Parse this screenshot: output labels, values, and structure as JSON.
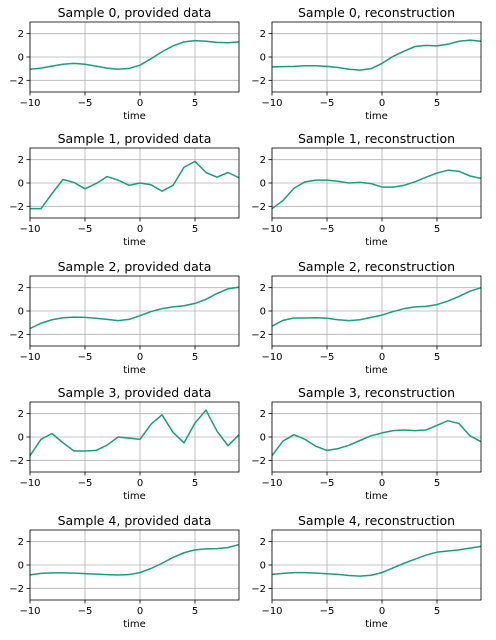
{
  "series_color": "#1b9e77",
  "chart_data": [
    {
      "type": "line",
      "title": "Sample 0, provided data",
      "xlabel": "time",
      "ylabel": "",
      "xlim": [
        -10,
        9
      ],
      "ylim": [
        -3,
        3
      ],
      "xticks": [
        -10,
        -5,
        0,
        5
      ],
      "yticks": [
        -2,
        0,
        2
      ],
      "grid": true,
      "x": [
        -10,
        -9,
        -8,
        -7,
        -6,
        -5,
        -4,
        -3,
        -2,
        -1,
        0,
        1,
        2,
        3,
        4,
        5,
        6,
        7,
        8,
        9
      ],
      "series": [
        {
          "values": [
            -1.05,
            -0.95,
            -0.78,
            -0.62,
            -0.55,
            -0.62,
            -0.78,
            -0.95,
            -1.05,
            -0.98,
            -0.7,
            -0.15,
            0.45,
            0.95,
            1.3,
            1.4,
            1.35,
            1.25,
            1.22,
            1.3
          ]
        }
      ]
    },
    {
      "type": "line",
      "title": "Sample 0, reconstruction",
      "xlabel": "time",
      "ylabel": "",
      "xlim": [
        -10,
        9
      ],
      "ylim": [
        -3,
        3
      ],
      "xticks": [
        -10,
        -5,
        0,
        5
      ],
      "yticks": [
        -2,
        0,
        2
      ],
      "grid": true,
      "x": [
        -10,
        -9,
        -8,
        -7,
        -6,
        -5,
        -4,
        -3,
        -2,
        -1,
        0,
        1,
        2,
        3,
        4,
        5,
        6,
        7,
        8,
        9
      ],
      "series": [
        {
          "values": [
            -0.85,
            -0.82,
            -0.8,
            -0.75,
            -0.75,
            -0.8,
            -0.9,
            -1.05,
            -1.12,
            -1.0,
            -0.55,
            0.05,
            0.5,
            0.9,
            1.0,
            0.95,
            1.1,
            1.35,
            1.45,
            1.35
          ]
        }
      ]
    },
    {
      "type": "line",
      "title": "Sample 1, provided data",
      "xlabel": "time",
      "ylabel": "",
      "xlim": [
        -10,
        9
      ],
      "ylim": [
        -3,
        3
      ],
      "xticks": [
        -10,
        -5,
        0,
        5
      ],
      "yticks": [
        -2,
        0,
        2
      ],
      "grid": true,
      "x": [
        -10,
        -9,
        -8,
        -7,
        -6,
        -5,
        -4,
        -3,
        -2,
        -1,
        0,
        1,
        2,
        3,
        4,
        5,
        6,
        7,
        8,
        9
      ],
      "series": [
        {
          "values": [
            -2.2,
            -2.2,
            -0.9,
            0.3,
            0.05,
            -0.5,
            -0.05,
            0.55,
            0.25,
            -0.2,
            0.0,
            -0.15,
            -0.7,
            -0.2,
            1.35,
            1.85,
            0.9,
            0.5,
            0.9,
            0.45
          ]
        }
      ]
    },
    {
      "type": "line",
      "title": "Sample 1, reconstruction",
      "xlabel": "time",
      "ylabel": "",
      "xlim": [
        -10,
        9
      ],
      "ylim": [
        -3,
        3
      ],
      "xticks": [
        -10,
        -5,
        0,
        5
      ],
      "yticks": [
        -2,
        0,
        2
      ],
      "grid": true,
      "x": [
        -10,
        -9,
        -8,
        -7,
        -6,
        -5,
        -4,
        -3,
        -2,
        -1,
        0,
        1,
        2,
        3,
        4,
        5,
        6,
        7,
        8,
        9
      ],
      "series": [
        {
          "values": [
            -2.2,
            -1.5,
            -0.45,
            0.1,
            0.25,
            0.25,
            0.15,
            0.0,
            0.05,
            -0.05,
            -0.35,
            -0.35,
            -0.2,
            0.1,
            0.5,
            0.85,
            1.1,
            1.0,
            0.6,
            0.4
          ]
        }
      ]
    },
    {
      "type": "line",
      "title": "Sample 2, provided data",
      "xlabel": "time",
      "ylabel": "",
      "xlim": [
        -10,
        9
      ],
      "ylim": [
        -3,
        3
      ],
      "xticks": [
        -10,
        -5,
        0,
        5
      ],
      "yticks": [
        -2,
        0,
        2
      ],
      "grid": true,
      "x": [
        -10,
        -9,
        -8,
        -7,
        -6,
        -5,
        -4,
        -3,
        -2,
        -1,
        0,
        1,
        2,
        3,
        4,
        5,
        6,
        7,
        8,
        9
      ],
      "series": [
        {
          "values": [
            -1.5,
            -1.05,
            -0.75,
            -0.58,
            -0.52,
            -0.55,
            -0.62,
            -0.72,
            -0.82,
            -0.72,
            -0.4,
            -0.05,
            0.2,
            0.35,
            0.45,
            0.65,
            1.0,
            1.5,
            1.9,
            2.05
          ]
        }
      ]
    },
    {
      "type": "line",
      "title": "Sample 2, reconstruction",
      "xlabel": "time",
      "ylabel": "",
      "xlim": [
        -10,
        9
      ],
      "ylim": [
        -3,
        3
      ],
      "xticks": [
        -10,
        -5,
        0,
        5
      ],
      "yticks": [
        -2,
        0,
        2
      ],
      "grid": true,
      "x": [
        -10,
        -9,
        -8,
        -7,
        -6,
        -5,
        -4,
        -3,
        -2,
        -1,
        0,
        1,
        2,
        3,
        4,
        5,
        6,
        7,
        8,
        9
      ],
      "series": [
        {
          "values": [
            -1.3,
            -0.8,
            -0.6,
            -0.6,
            -0.58,
            -0.62,
            -0.75,
            -0.82,
            -0.75,
            -0.55,
            -0.35,
            -0.05,
            0.2,
            0.35,
            0.4,
            0.55,
            0.85,
            1.25,
            1.7,
            2.0
          ]
        }
      ]
    },
    {
      "type": "line",
      "title": "Sample 3, provided data",
      "xlabel": "time",
      "ylabel": "",
      "xlim": [
        -10,
        9
      ],
      "ylim": [
        -3,
        3
      ],
      "xticks": [
        -10,
        -5,
        0,
        5
      ],
      "yticks": [
        -2,
        0,
        2
      ],
      "grid": true,
      "x": [
        -10,
        -9,
        -8,
        -7,
        -6,
        -5,
        -4,
        -3,
        -2,
        -1,
        0,
        1,
        2,
        3,
        4,
        5,
        6,
        7,
        8,
        9
      ],
      "series": [
        {
          "values": [
            -1.6,
            -0.2,
            0.3,
            -0.5,
            -1.2,
            -1.2,
            -1.15,
            -0.7,
            0.0,
            -0.1,
            -0.2,
            1.1,
            1.9,
            0.4,
            -0.5,
            1.2,
            2.3,
            0.5,
            -0.75,
            0.2
          ]
        }
      ]
    },
    {
      "type": "line",
      "title": "Sample 3, reconstruction",
      "xlabel": "time",
      "ylabel": "",
      "xlim": [
        -10,
        9
      ],
      "ylim": [
        -3,
        3
      ],
      "xticks": [
        -10,
        -5,
        0,
        5
      ],
      "yticks": [
        -2,
        0,
        2
      ],
      "grid": true,
      "x": [
        -10,
        -9,
        -8,
        -7,
        -6,
        -5,
        -4,
        -3,
        -2,
        -1,
        0,
        1,
        2,
        3,
        4,
        5,
        6,
        7,
        8,
        9
      ],
      "series": [
        {
          "values": [
            -1.6,
            -0.35,
            0.2,
            -0.2,
            -0.8,
            -1.15,
            -1.0,
            -0.7,
            -0.3,
            0.1,
            0.35,
            0.55,
            0.6,
            0.55,
            0.6,
            1.0,
            1.4,
            1.15,
            0.1,
            -0.4
          ]
        }
      ]
    },
    {
      "type": "line",
      "title": "Sample 4, provided data",
      "xlabel": "time",
      "ylabel": "",
      "xlim": [
        -10,
        9
      ],
      "ylim": [
        -3,
        3
      ],
      "xticks": [
        -10,
        -5,
        0,
        5
      ],
      "yticks": [
        -2,
        0,
        2
      ],
      "grid": true,
      "x": [
        -10,
        -9,
        -8,
        -7,
        -6,
        -5,
        -4,
        -3,
        -2,
        -1,
        0,
        1,
        2,
        3,
        4,
        5,
        6,
        7,
        8,
        9
      ],
      "series": [
        {
          "values": [
            -0.85,
            -0.72,
            -0.68,
            -0.68,
            -0.7,
            -0.74,
            -0.78,
            -0.82,
            -0.86,
            -0.82,
            -0.65,
            -0.3,
            0.15,
            0.65,
            1.05,
            1.3,
            1.38,
            1.4,
            1.5,
            1.75
          ]
        }
      ]
    },
    {
      "type": "line",
      "title": "Sample 4, reconstruction",
      "xlabel": "time",
      "ylabel": "",
      "xlim": [
        -10,
        9
      ],
      "ylim": [
        -3,
        3
      ],
      "xticks": [
        -10,
        -5,
        0,
        5
      ],
      "yticks": [
        -2,
        0,
        2
      ],
      "grid": true,
      "x": [
        -10,
        -9,
        -8,
        -7,
        -6,
        -5,
        -4,
        -3,
        -2,
        -1,
        0,
        1,
        2,
        3,
        4,
        5,
        6,
        7,
        8,
        9
      ],
      "series": [
        {
          "values": [
            -0.8,
            -0.72,
            -0.65,
            -0.65,
            -0.7,
            -0.75,
            -0.8,
            -0.9,
            -0.95,
            -0.88,
            -0.65,
            -0.25,
            0.15,
            0.5,
            0.85,
            1.1,
            1.2,
            1.3,
            1.45,
            1.6
          ]
        }
      ]
    }
  ]
}
